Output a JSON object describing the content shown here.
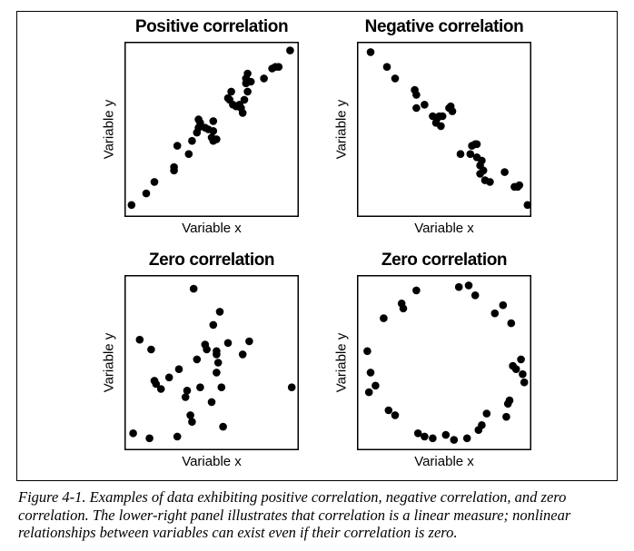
{
  "caption": "Figure 4-1. Examples of data exhibiting positive correlation, negative correlation, and zero correlation. The lower-right panel illustrates that correlation is a linear measure; nonlinear relationships between variables can exist even if their correlation is zero.",
  "chart_data": [
    {
      "type": "scatter",
      "title": "Positive correlation",
      "xlabel": "Variable x",
      "ylabel": "Variable y",
      "xlim": [
        0,
        1
      ],
      "ylim": [
        0,
        1
      ],
      "grid": false,
      "ticks": false,
      "x": [
        0.01,
        0.1,
        0.15,
        0.27,
        0.27,
        0.29,
        0.36,
        0.38,
        0.41,
        0.42,
        0.42,
        0.43,
        0.46,
        0.48,
        0.5,
        0.51,
        0.51,
        0.51,
        0.53,
        0.6,
        0.61,
        0.62,
        0.63,
        0.65,
        0.67,
        0.68,
        0.69,
        0.7,
        0.71,
        0.71,
        0.72,
        0.72,
        0.74,
        0.82,
        0.87,
        0.89,
        0.91,
        0.98
      ],
      "y": [
        0.04,
        0.11,
        0.18,
        0.25,
        0.27,
        0.4,
        0.35,
        0.43,
        0.48,
        0.51,
        0.56,
        0.54,
        0.51,
        0.5,
        0.45,
        0.43,
        0.55,
        0.49,
        0.44,
        0.69,
        0.68,
        0.73,
        0.65,
        0.64,
        0.65,
        0.63,
        0.6,
        0.68,
        0.78,
        0.81,
        0.73,
        0.84,
        0.79,
        0.81,
        0.87,
        0.88,
        0.88,
        0.98
      ]
    },
    {
      "type": "scatter",
      "title": "Negative correlation",
      "xlabel": "Variable x",
      "ylabel": "Variable y",
      "xlim": [
        0,
        1
      ],
      "ylim": [
        0,
        1
      ],
      "grid": false,
      "ticks": false,
      "x": [
        0.05,
        0.15,
        0.2,
        0.32,
        0.33,
        0.33,
        0.38,
        0.43,
        0.45,
        0.46,
        0.47,
        0.48,
        0.49,
        0.53,
        0.54,
        0.55,
        0.6,
        0.66,
        0.67,
        0.69,
        0.7,
        0.7,
        0.72,
        0.72,
        0.73,
        0.74,
        0.75,
        0.78,
        0.87,
        0.93,
        0.95,
        0.96,
        1.01
      ],
      "y": [
        0.97,
        0.88,
        0.81,
        0.74,
        0.71,
        0.63,
        0.65,
        0.58,
        0.54,
        0.57,
        0.58,
        0.52,
        0.58,
        0.63,
        0.64,
        0.61,
        0.35,
        0.35,
        0.4,
        0.41,
        0.41,
        0.33,
        0.28,
        0.23,
        0.31,
        0.25,
        0.19,
        0.18,
        0.24,
        0.15,
        0.15,
        0.16,
        0.04
      ]
    },
    {
      "type": "scatter",
      "title": "Zero correlation",
      "xlabel": "Variable x",
      "ylabel": "Variable y",
      "xlim": [
        0,
        1
      ],
      "ylim": [
        0,
        1
      ],
      "grid": false,
      "ticks": false,
      "x": [
        0.02,
        0.06,
        0.12,
        0.13,
        0.15,
        0.16,
        0.19,
        0.24,
        0.29,
        0.3,
        0.34,
        0.35,
        0.37,
        0.38,
        0.39,
        0.41,
        0.43,
        0.46,
        0.47,
        0.5,
        0.51,
        0.53,
        0.53,
        0.53,
        0.54,
        0.55,
        0.56,
        0.57,
        0.6,
        0.69,
        0.73,
        0.99
      ],
      "y": [
        0.07,
        0.64,
        0.04,
        0.58,
        0.39,
        0.37,
        0.34,
        0.41,
        0.05,
        0.46,
        0.29,
        0.33,
        0.18,
        0.14,
        0.95,
        0.52,
        0.35,
        0.61,
        0.58,
        0.26,
        0.73,
        0.55,
        0.44,
        0.57,
        0.5,
        0.81,
        0.35,
        0.11,
        0.62,
        0.55,
        0.63,
        0.35
      ]
    },
    {
      "type": "scatter",
      "title": "Zero correlation",
      "xlabel": "Variable x",
      "ylabel": "Variable y",
      "xlim": [
        0,
        1
      ],
      "ylim": [
        0,
        1
      ],
      "grid": false,
      "ticks": false,
      "x": [
        0.03,
        0.04,
        0.05,
        0.08,
        0.13,
        0.16,
        0.2,
        0.24,
        0.25,
        0.33,
        0.34,
        0.38,
        0.43,
        0.51,
        0.56,
        0.59,
        0.64,
        0.65,
        0.69,
        0.71,
        0.73,
        0.76,
        0.81,
        0.86,
        0.88,
        0.89,
        0.9,
        0.91,
        0.92,
        0.94,
        0.97,
        0.98,
        0.99
      ],
      "y": [
        0.57,
        0.32,
        0.44,
        0.36,
        0.77,
        0.21,
        0.18,
        0.86,
        0.83,
        0.94,
        0.07,
        0.05,
        0.04,
        0.06,
        0.03,
        0.96,
        0.04,
        0.97,
        0.91,
        0.09,
        0.12,
        0.19,
        0.8,
        0.85,
        0.17,
        0.25,
        0.27,
        0.74,
        0.48,
        0.46,
        0.52,
        0.43,
        0.38
      ]
    }
  ]
}
